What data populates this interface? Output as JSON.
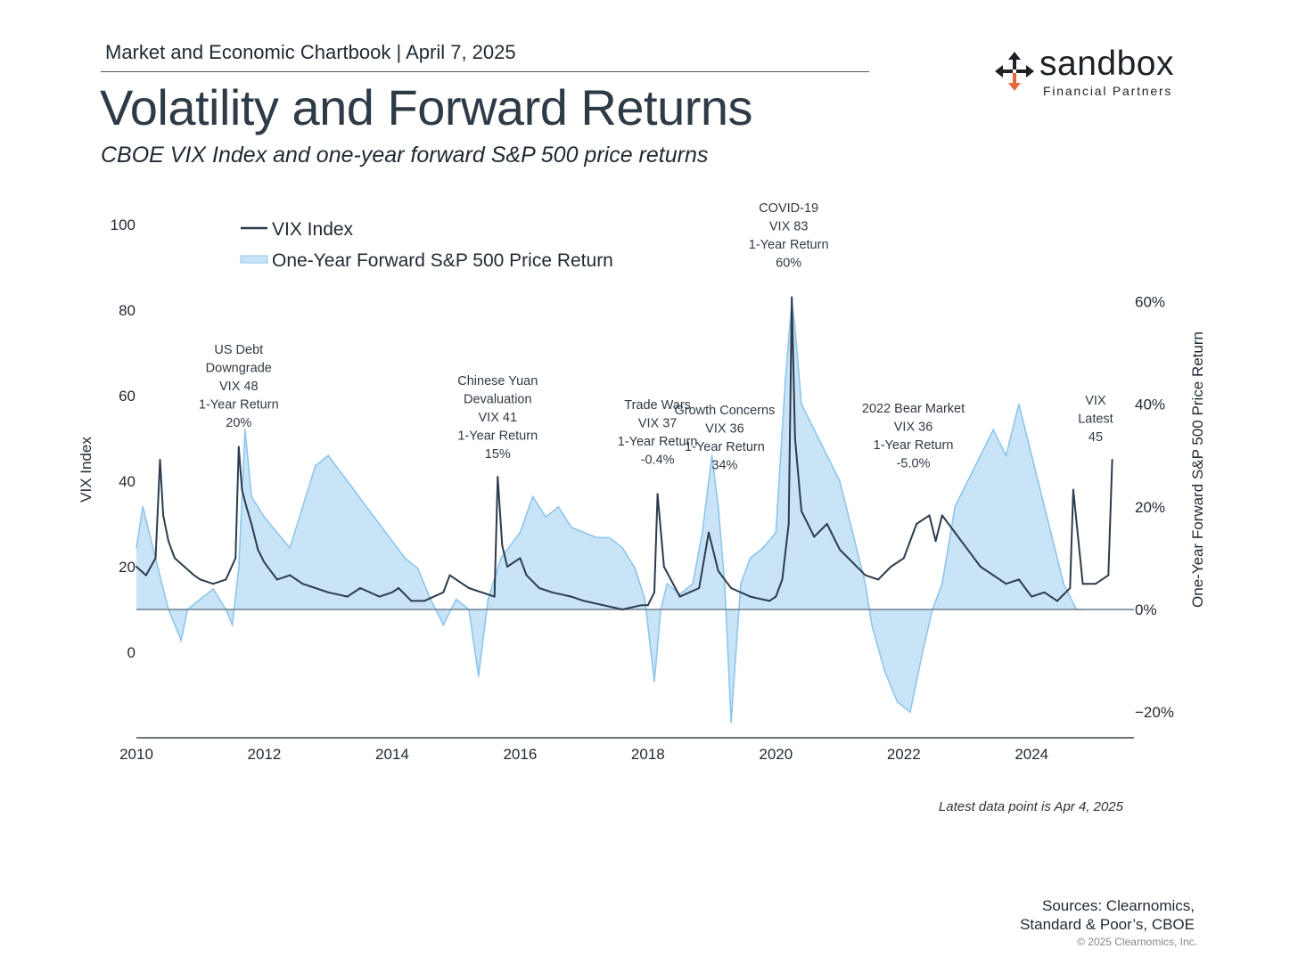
{
  "header": {
    "chartbook": "Market and Economic Chartbook | April 7, 2025",
    "title": "Volatility and Forward Returns",
    "subtitle": "CBOE VIX Index and one-year forward S&P 500 price returns"
  },
  "logo": {
    "word": "sandbox",
    "sub": "Financial Partners",
    "colors": {
      "arrows": "#1e2227",
      "accent": "#e8663d"
    }
  },
  "footer": {
    "note": "Latest data point is Apr 4, 2025",
    "sources_line1": "Sources: Clearnomics,",
    "sources_line2": "Standard & Poor’s, CBOE",
    "copyright": "© 2025 Clearnomics, Inc."
  },
  "chart_data": {
    "type": "line",
    "left_axis": {
      "label": "VIX Index",
      "ticks": [
        0,
        20,
        40,
        60,
        80,
        100
      ],
      "range": [
        -20,
        100
      ]
    },
    "right_axis": {
      "label": "One-Year Forward S&P 500 Price Return",
      "ticks": [
        "−20%",
        "0%",
        "20%",
        "40%",
        "60%"
      ],
      "tick_values": [
        -20,
        0,
        20,
        40,
        60
      ],
      "range": [
        -25,
        75
      ]
    },
    "x_axis": {
      "ticks": [
        "2010",
        "2012",
        "2014",
        "2016",
        "2018",
        "2020",
        "2022",
        "2024"
      ],
      "tick_values": [
        2010,
        2012,
        2014,
        2016,
        2018,
        2020,
        2022,
        2024
      ],
      "range": [
        2010,
        2025.6
      ]
    },
    "legend": {
      "position": "top-left",
      "vix": "VIX Index",
      "fwd": "One-Year Forward S&P 500 Price Return"
    },
    "colors": {
      "vix": "#2d3b4d",
      "fwd_fill": "#c9e4f7",
      "fwd_line": "#8ec6ec",
      "axis": "#3a4652",
      "zero_line": "#6f7f8c"
    },
    "series": [
      {
        "name": "VIX Index",
        "x": [
          2010.0,
          2010.15,
          2010.3,
          2010.37,
          2010.42,
          2010.5,
          2010.6,
          2010.75,
          2010.9,
          2011.0,
          2011.2,
          2011.4,
          2011.55,
          2011.6,
          2011.65,
          2011.72,
          2011.8,
          2011.9,
          2012.0,
          2012.2,
          2012.4,
          2012.6,
          2012.8,
          2013.0,
          2013.3,
          2013.5,
          2013.8,
          2014.0,
          2014.1,
          2014.3,
          2014.5,
          2014.8,
          2014.9,
          2015.0,
          2015.2,
          2015.4,
          2015.6,
          2015.65,
          2015.72,
          2015.8,
          2016.0,
          2016.1,
          2016.3,
          2016.5,
          2016.8,
          2017.0,
          2017.3,
          2017.6,
          2017.9,
          2018.0,
          2018.1,
          2018.15,
          2018.25,
          2018.5,
          2018.8,
          2018.95,
          2019.1,
          2019.3,
          2019.6,
          2019.9,
          2020.0,
          2020.1,
          2020.2,
          2020.25,
          2020.3,
          2020.4,
          2020.6,
          2020.8,
          2021.0,
          2021.2,
          2021.4,
          2021.6,
          2021.8,
          2022.0,
          2022.2,
          2022.4,
          2022.5,
          2022.6,
          2022.8,
          2023.0,
          2023.2,
          2023.4,
          2023.6,
          2023.8,
          2024.0,
          2024.2,
          2024.4,
          2024.6,
          2024.65,
          2024.8,
          2025.0,
          2025.2,
          2025.26
        ],
        "values": [
          20,
          18,
          22,
          45,
          32,
          26,
          22,
          20,
          18,
          17,
          16,
          17,
          22,
          48,
          38,
          34,
          30,
          24,
          21,
          17,
          18,
          16,
          15,
          14,
          13,
          15,
          13,
          14,
          15,
          12,
          12,
          14,
          18,
          17,
          15,
          14,
          13,
          41,
          25,
          20,
          22,
          18,
          15,
          14,
          13,
          12,
          11,
          10,
          11,
          11,
          14,
          37,
          20,
          13,
          15,
          28,
          19,
          15,
          13,
          12,
          13,
          17,
          30,
          83,
          50,
          33,
          27,
          30,
          24,
          21,
          18,
          17,
          20,
          22,
          30,
          32,
          26,
          32,
          28,
          24,
          20,
          18,
          16,
          17,
          13,
          14,
          12,
          15,
          38,
          16,
          16,
          18,
          45
        ]
      },
      {
        "name": "One-Year Forward S&P 500 Price Return",
        "x": [
          2010.0,
          2010.1,
          2010.3,
          2010.5,
          2010.7,
          2010.8,
          2011.0,
          2011.2,
          2011.4,
          2011.5,
          2011.6,
          2011.7,
          2011.8,
          2012.0,
          2012.2,
          2012.4,
          2012.6,
          2012.8,
          2013.0,
          2013.3,
          2013.6,
          2013.9,
          2014.2,
          2014.4,
          2014.6,
          2014.8,
          2015.0,
          2015.2,
          2015.35,
          2015.5,
          2015.7,
          2016.0,
          2016.2,
          2016.4,
          2016.6,
          2016.8,
          2017.0,
          2017.2,
          2017.4,
          2017.6,
          2017.8,
          2017.95,
          2018.1,
          2018.2,
          2018.3,
          2018.5,
          2018.7,
          2018.85,
          2019.0,
          2019.1,
          2019.2,
          2019.3,
          2019.45,
          2019.6,
          2019.8,
          2020.0,
          2020.15,
          2020.25,
          2020.3,
          2020.4,
          2020.6,
          2020.8,
          2021.0,
          2021.2,
          2021.4,
          2021.5,
          2021.7,
          2021.9,
          2022.1,
          2022.3,
          2022.45,
          2022.6,
          2022.8,
          2023.0,
          2023.2,
          2023.4,
          2023.6,
          2023.8,
          2023.9,
          2024.1,
          2024.3,
          2024.5,
          2024.7,
          2024.8
        ],
        "values": [
          12,
          20,
          10,
          0,
          -6,
          0,
          2,
          4,
          0,
          -3,
          8,
          35,
          22,
          18,
          15,
          12,
          20,
          28,
          30,
          25,
          20,
          15,
          10,
          8,
          2,
          -3,
          2,
          0,
          -13,
          2,
          10,
          15,
          22,
          18,
          20,
          16,
          15,
          14,
          14,
          12,
          8,
          2,
          -14,
          0,
          5,
          3,
          5,
          15,
          30,
          20,
          5,
          -22,
          5,
          10,
          12,
          15,
          45,
          60,
          55,
          40,
          35,
          30,
          25,
          15,
          5,
          -3,
          -12,
          -18,
          -20,
          -8,
          0,
          5,
          20,
          25,
          30,
          35,
          30,
          40,
          35,
          25,
          15,
          5,
          0,
          0
        ]
      }
    ],
    "annotations": [
      {
        "x": 2011.6,
        "lines": [
          "US Debt",
          "Downgrade",
          "VIX 48",
          "1-Year Return",
          "20%"
        ]
      },
      {
        "x": 2015.65,
        "lines": [
          "Chinese Yuan",
          "Devaluation",
          "VIX 41",
          "1-Year Return",
          "15%"
        ]
      },
      {
        "x": 2018.15,
        "lines": [
          "Trade Wars",
          "VIX 37",
          "1-Year Return",
          "-0.4%"
        ]
      },
      {
        "x": 2019.2,
        "lines": [
          "Growth Concerns",
          "VIX 36",
          "1-Year Return",
          "34%"
        ]
      },
      {
        "x": 2020.2,
        "lines": [
          "COVID-19",
          "VIX 83",
          "1-Year Return",
          "60%"
        ]
      },
      {
        "x": 2022.15,
        "lines": [
          "2022 Bear Market",
          "VIX 36",
          "1-Year Return",
          "-5.0%"
        ]
      },
      {
        "x": 2025.0,
        "lines": [
          "VIX",
          "Latest",
          "45"
        ]
      }
    ]
  }
}
